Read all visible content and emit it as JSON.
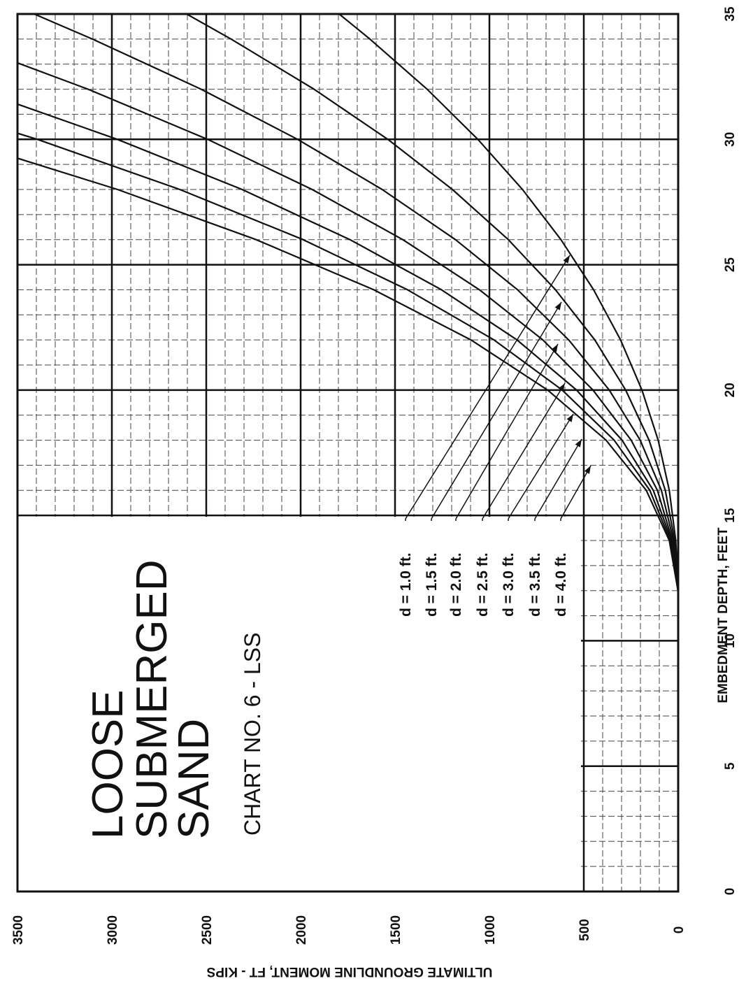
{
  "chart_data": {
    "type": "line",
    "title_lines": [
      "LOOSE",
      "SUBMERGED",
      "SAND"
    ],
    "subtitle": "CHART NO. 6 - LSS",
    "x_label": "EMBEDMENT DEPTH, FEET",
    "y_label": "ULTIMATE GROUNDLINE MOMENT, FT - KIPS",
    "x": [
      12,
      14,
      16,
      18,
      20,
      22,
      24,
      26,
      28,
      30,
      32,
      34,
      35
    ],
    "series": [
      {
        "name": "d = 1.0 ft.",
        "color": "#111111",
        "values": [
          0,
          13,
          47,
          106,
          192,
          305,
          448,
          621,
          825,
          1061,
          1330,
          1633,
          1796
        ]
      },
      {
        "name": "d = 1.5 ft.",
        "color": "#111111",
        "values": [
          1,
          19,
          68,
          154,
          278,
          442,
          650,
          900,
          1196,
          1538,
          1929,
          2368,
          2604
        ]
      },
      {
        "name": "d = 2.0 ft.",
        "color": "#111111",
        "values": [
          1,
          25,
          89,
          201,
          365,
          580,
          851,
          1180,
          1568,
          2016,
          2527,
          3103,
          3412
        ]
      },
      {
        "name": "d = 2.5 ft.",
        "color": "#111111",
        "values": [
          1,
          31,
          110,
          249,
          451,
          717,
          1053,
          1459,
          1939,
          2493,
          3126,
          3838,
          null
        ]
      },
      {
        "name": "d = 3.0 ft.",
        "color": "#111111",
        "values": [
          1,
          36,
          132,
          297,
          538,
          854,
          1254,
          1739,
          2310,
          2971,
          3724,
          null,
          null
        ]
      },
      {
        "name": "d = 3.5 ft.",
        "color": "#111111",
        "values": [
          1,
          42,
          150,
          339,
          614,
          976,
          1434,
          1987,
          2640,
          3395,
          4256,
          null,
          null
        ]
      },
      {
        "name": "d = 4.0 ft.",
        "color": "#111111",
        "values": [
          1,
          47,
          169,
          382,
          691,
          1098,
          1613,
          2236,
          2970,
          3820,
          null,
          null,
          null
        ]
      }
    ],
    "xlim": [
      0,
      35
    ],
    "xticks": [
      0,
      5,
      10,
      15,
      20,
      25,
      30,
      35
    ],
    "ylim": [
      0,
      3500
    ],
    "yticks": [
      0,
      500,
      1000,
      1500,
      2000,
      2500,
      3000,
      3500
    ],
    "grid": true
  }
}
